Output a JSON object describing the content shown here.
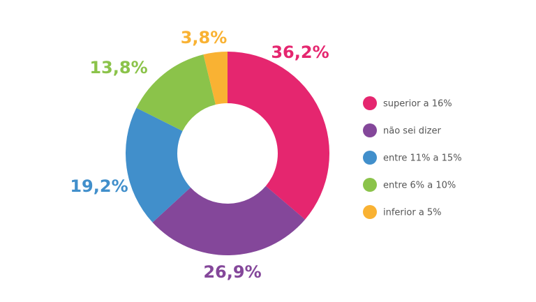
{
  "chart_data": {
    "type": "donut",
    "categories": [
      "superior a 16%",
      "não sei dizer",
      "entre 11% a 15%",
      "entre 6% a 10%",
      "inferior a 5%"
    ],
    "values": [
      36.2,
      26.9,
      19.2,
      13.8,
      3.8
    ],
    "value_labels": [
      "36,2%",
      "26,9%",
      "19,2%",
      "13,8%",
      "3,8%"
    ],
    "colors": [
      "#e5266f",
      "#84479a",
      "#418fcb",
      "#8bc34a",
      "#f9b233"
    ],
    "legend": "right"
  }
}
